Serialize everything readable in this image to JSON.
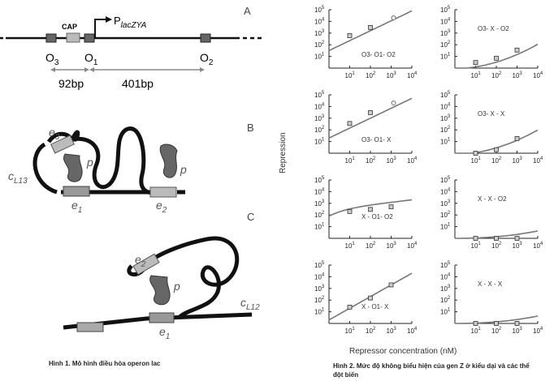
{
  "left": {
    "panel_a_label": "A",
    "panel_b_label": "B",
    "panel_c_label": "C",
    "cap_label": "CAP",
    "promoter_label": "P",
    "promoter_sub": "lacZYA",
    "o3": "O",
    "o3_sub": "3",
    "o1": "O",
    "o1_sub": "1",
    "o2": "O",
    "o2_sub": "2",
    "dist1": "92bp",
    "dist2": "401bp",
    "b_e3": "e",
    "b_e3_sub": "3",
    "b_p1": "p",
    "b_cl": "c",
    "b_cl_sub": "L13",
    "b_e1": "e",
    "b_e1_sub": "1",
    "b_p2": "p",
    "b_e2": "e",
    "b_e2_sub": "2",
    "c_e2": "e",
    "c_e2_sub": "2",
    "c_p": "p",
    "c_cl": "c",
    "c_cl_sub": "L12",
    "c_e1": "e",
    "c_e1_sub": "1",
    "caption": "Hình 1. Mô hình điều hòa operon lac"
  },
  "right": {
    "ylabel": "Repression",
    "xlabel": "Repressor concentration (nM)",
    "caption": "Hình 2. Mức độ không biểu hiện của gen Z ở  kiểu dại và các thể đột biến",
    "y_ticks": [
      "10",
      "10",
      "10",
      "10",
      "10"
    ],
    "y_exps": [
      "5",
      "4",
      "3",
      "2",
      "1"
    ],
    "x_ticks": [
      "10",
      "10",
      "10",
      "10"
    ],
    "x_exps": [
      "1",
      "2",
      "3",
      "4"
    ]
  },
  "chart_data": [
    {
      "type": "line",
      "label": "O3- O1- O2",
      "x": [
        10,
        100,
        1000
      ],
      "y": [
        600,
        3000,
        null
      ],
      "curve": "rising-early",
      "outlier_at_1000": true
    },
    {
      "type": "line",
      "label": "O3- X - O2",
      "x": [
        10,
        100,
        1000
      ],
      "y": [
        3,
        7,
        35
      ],
      "curve": "rising-late"
    },
    {
      "type": "line",
      "label": "O3- O1- X",
      "x": [
        10,
        100,
        1000
      ],
      "y": [
        350,
        3000,
        null
      ],
      "curve": "rising-early",
      "outlier_at_1000": true
    },
    {
      "type": "line",
      "label": "O3- X - X",
      "x": [
        10,
        100,
        1000
      ],
      "y": [
        1,
        2,
        18
      ],
      "curve": "rising-late"
    },
    {
      "type": "line",
      "label": "X - O1- O2",
      "x": [
        10,
        100,
        1000
      ],
      "y": [
        200,
        300,
        500
      ],
      "curve": "plateau"
    },
    {
      "type": "line",
      "label": "X - X - O2",
      "x": [
        10,
        100,
        1000
      ],
      "y": [
        1,
        1,
        1
      ],
      "curve": "flat"
    },
    {
      "type": "line",
      "label": "X - O1- X",
      "x": [
        10,
        100,
        1000
      ],
      "y": [
        25,
        150,
        2000
      ],
      "curve": "linear"
    },
    {
      "type": "line",
      "label": "X - X - X",
      "x": [
        10,
        100,
        1000
      ],
      "y": [
        1,
        1,
        1
      ],
      "curve": "flat"
    }
  ]
}
